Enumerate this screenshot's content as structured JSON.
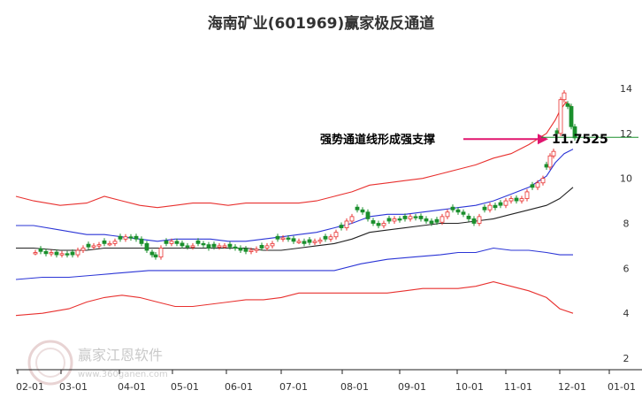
{
  "chart_data": {
    "type": "line",
    "title": "海南矿业(601969)赢家极反通道",
    "xlabel": "",
    "ylabel": "",
    "x_ticks": [
      "02-01",
      "03-01",
      "04-01",
      "05-01",
      "06-01",
      "07-01",
      "08-01",
      "09-01",
      "10-01",
      "11-01",
      "12-01",
      "01-01"
    ],
    "y_ticks": [
      2,
      4,
      6,
      8,
      10,
      12,
      14
    ],
    "ylim": [
      1.8,
      15.6
    ],
    "grid": false,
    "annotation": {
      "text": "强势通道线形成强支撑",
      "value": "11.7525",
      "y": 11.75
    },
    "series": [
      {
        "role": "upper",
        "color": "#e8312f",
        "points": [
          [
            0,
            9.2
          ],
          [
            20,
            9.0
          ],
          [
            50,
            8.8
          ],
          [
            80,
            8.9
          ],
          [
            100,
            9.2
          ],
          [
            120,
            9.0
          ],
          [
            140,
            8.8
          ],
          [
            160,
            8.7
          ],
          [
            180,
            8.8
          ],
          [
            200,
            8.9
          ],
          [
            220,
            8.9
          ],
          [
            240,
            8.8
          ],
          [
            260,
            8.9
          ],
          [
            280,
            8.9
          ],
          [
            300,
            8.9
          ],
          [
            320,
            8.9
          ],
          [
            340,
            9.0
          ],
          [
            360,
            9.2
          ],
          [
            380,
            9.4
          ],
          [
            400,
            9.7
          ],
          [
            420,
            9.8
          ],
          [
            440,
            9.9
          ],
          [
            460,
            10.0
          ],
          [
            480,
            10.2
          ],
          [
            500,
            10.4
          ],
          [
            520,
            10.6
          ],
          [
            540,
            10.9
          ],
          [
            560,
            11.1
          ],
          [
            580,
            11.5
          ],
          [
            600,
            12.0
          ],
          [
            610,
            12.6
          ],
          [
            615,
            13.0
          ],
          [
            622,
            13.4
          ],
          [
            630,
            13.1
          ]
        ]
      },
      {
        "role": "middle-upper",
        "color": "#2b35d6",
        "points": [
          [
            0,
            7.9
          ],
          [
            20,
            7.9
          ],
          [
            50,
            7.7
          ],
          [
            80,
            7.5
          ],
          [
            100,
            7.5
          ],
          [
            120,
            7.4
          ],
          [
            140,
            7.3
          ],
          [
            160,
            7.2
          ],
          [
            180,
            7.3
          ],
          [
            200,
            7.3
          ],
          [
            220,
            7.3
          ],
          [
            240,
            7.2
          ],
          [
            260,
            7.2
          ],
          [
            280,
            7.3
          ],
          [
            300,
            7.4
          ],
          [
            320,
            7.5
          ],
          [
            340,
            7.6
          ],
          [
            360,
            7.8
          ],
          [
            380,
            8.0
          ],
          [
            400,
            8.3
          ],
          [
            420,
            8.4
          ],
          [
            440,
            8.4
          ],
          [
            460,
            8.5
          ],
          [
            480,
            8.6
          ],
          [
            500,
            8.7
          ],
          [
            520,
            8.8
          ],
          [
            540,
            9.0
          ],
          [
            560,
            9.3
          ],
          [
            580,
            9.6
          ],
          [
            600,
            10.1
          ],
          [
            610,
            10.7
          ],
          [
            620,
            11.1
          ],
          [
            630,
            11.3
          ]
        ]
      },
      {
        "role": "middle",
        "color": "#222222",
        "points": [
          [
            0,
            6.9
          ],
          [
            20,
            6.9
          ],
          [
            50,
            6.8
          ],
          [
            80,
            6.8
          ],
          [
            100,
            6.9
          ],
          [
            120,
            6.9
          ],
          [
            140,
            6.9
          ],
          [
            160,
            6.9
          ],
          [
            180,
            6.9
          ],
          [
            200,
            6.9
          ],
          [
            220,
            6.9
          ],
          [
            240,
            6.9
          ],
          [
            260,
            6.9
          ],
          [
            280,
            6.8
          ],
          [
            300,
            6.8
          ],
          [
            320,
            6.9
          ],
          [
            340,
            7.0
          ],
          [
            360,
            7.1
          ],
          [
            380,
            7.3
          ],
          [
            400,
            7.6
          ],
          [
            420,
            7.7
          ],
          [
            440,
            7.8
          ],
          [
            460,
            7.9
          ],
          [
            480,
            8.0
          ],
          [
            500,
            8.0
          ],
          [
            520,
            8.1
          ],
          [
            540,
            8.2
          ],
          [
            560,
            8.4
          ],
          [
            580,
            8.6
          ],
          [
            600,
            8.8
          ],
          [
            615,
            9.1
          ],
          [
            630,
            9.6
          ]
        ]
      },
      {
        "role": "middle-lower",
        "color": "#2b35d6",
        "points": [
          [
            0,
            5.5
          ],
          [
            30,
            5.6
          ],
          [
            60,
            5.6
          ],
          [
            90,
            5.7
          ],
          [
            120,
            5.8
          ],
          [
            150,
            5.9
          ],
          [
            180,
            5.9
          ],
          [
            210,
            5.9
          ],
          [
            240,
            5.9
          ],
          [
            270,
            5.9
          ],
          [
            300,
            5.9
          ],
          [
            330,
            5.9
          ],
          [
            360,
            5.9
          ],
          [
            390,
            6.2
          ],
          [
            420,
            6.4
          ],
          [
            450,
            6.5
          ],
          [
            480,
            6.6
          ],
          [
            500,
            6.7
          ],
          [
            520,
            6.7
          ],
          [
            540,
            6.9
          ],
          [
            560,
            6.8
          ],
          [
            580,
            6.8
          ],
          [
            600,
            6.7
          ],
          [
            615,
            6.6
          ],
          [
            630,
            6.6
          ]
        ]
      },
      {
        "role": "lower",
        "color": "#e8312f",
        "points": [
          [
            0,
            3.9
          ],
          [
            30,
            4.0
          ],
          [
            60,
            4.2
          ],
          [
            80,
            4.5
          ],
          [
            100,
            4.7
          ],
          [
            120,
            4.8
          ],
          [
            140,
            4.7
          ],
          [
            160,
            4.5
          ],
          [
            180,
            4.3
          ],
          [
            200,
            4.3
          ],
          [
            220,
            4.4
          ],
          [
            240,
            4.5
          ],
          [
            260,
            4.6
          ],
          [
            280,
            4.6
          ],
          [
            300,
            4.7
          ],
          [
            320,
            4.9
          ],
          [
            340,
            4.9
          ],
          [
            360,
            4.9
          ],
          [
            380,
            4.9
          ],
          [
            400,
            4.9
          ],
          [
            420,
            4.9
          ],
          [
            440,
            5.0
          ],
          [
            460,
            5.1
          ],
          [
            480,
            5.1
          ],
          [
            500,
            5.1
          ],
          [
            520,
            5.2
          ],
          [
            540,
            5.4
          ],
          [
            560,
            5.2
          ],
          [
            580,
            5.0
          ],
          [
            600,
            4.7
          ],
          [
            615,
            4.2
          ],
          [
            630,
            4.0
          ]
        ]
      }
    ],
    "candles": [
      [
        22,
        6.7
      ],
      [
        28,
        6.75
      ],
      [
        34,
        6.65
      ],
      [
        40,
        6.7
      ],
      [
        46,
        6.6
      ],
      [
        52,
        6.65
      ],
      [
        58,
        6.6
      ],
      [
        64,
        6.6
      ],
      [
        70,
        6.8
      ],
      [
        76,
        6.9
      ],
      [
        82,
        6.95
      ],
      [
        88,
        7.0
      ],
      [
        94,
        7.05
      ],
      [
        100,
        7.1
      ],
      [
        106,
        7.1
      ],
      [
        112,
        7.2
      ],
      [
        118,
        7.3
      ],
      [
        124,
        7.4
      ],
      [
        130,
        7.35
      ],
      [
        136,
        7.3
      ],
      [
        142,
        7.1
      ],
      [
        148,
        6.8
      ],
      [
        154,
        6.6
      ],
      [
        158,
        6.5
      ],
      [
        164,
        6.9
      ],
      [
        170,
        7.1
      ],
      [
        176,
        7.2
      ],
      [
        182,
        7.1
      ],
      [
        188,
        7.0
      ],
      [
        194,
        6.95
      ],
      [
        200,
        7.0
      ],
      [
        206,
        7.1
      ],
      [
        212,
        7.05
      ],
      [
        218,
        6.9
      ],
      [
        224,
        6.95
      ],
      [
        230,
        7.0
      ],
      [
        236,
        7.0
      ],
      [
        242,
        6.95
      ],
      [
        248,
        6.9
      ],
      [
        254,
        6.8
      ],
      [
        260,
        6.75
      ],
      [
        266,
        6.8
      ],
      [
        272,
        6.85
      ],
      [
        278,
        6.9
      ],
      [
        284,
        7.0
      ],
      [
        290,
        7.1
      ],
      [
        296,
        7.3
      ],
      [
        302,
        7.35
      ],
      [
        308,
        7.3
      ],
      [
        314,
        7.2
      ],
      [
        320,
        7.2
      ],
      [
        326,
        7.1
      ],
      [
        332,
        7.15
      ],
      [
        338,
        7.2
      ],
      [
        344,
        7.25
      ],
      [
        350,
        7.3
      ],
      [
        356,
        7.4
      ],
      [
        362,
        7.6
      ],
      [
        368,
        7.8
      ],
      [
        374,
        8.1
      ],
      [
        380,
        8.3
      ],
      [
        386,
        8.6
      ],
      [
        392,
        8.5
      ],
      [
        398,
        8.2
      ],
      [
        404,
        8.0
      ],
      [
        410,
        7.9
      ],
      [
        416,
        8.0
      ],
      [
        422,
        8.1
      ],
      [
        428,
        8.2
      ],
      [
        434,
        8.15
      ],
      [
        440,
        8.2
      ],
      [
        446,
        8.3
      ],
      [
        452,
        8.25
      ],
      [
        458,
        8.2
      ],
      [
        464,
        8.1
      ],
      [
        470,
        8.0
      ],
      [
        476,
        8.05
      ],
      [
        482,
        8.3
      ],
      [
        488,
        8.5
      ],
      [
        494,
        8.6
      ],
      [
        500,
        8.5
      ],
      [
        506,
        8.4
      ],
      [
        512,
        8.2
      ],
      [
        518,
        8.0
      ],
      [
        524,
        8.3
      ],
      [
        530,
        8.6
      ],
      [
        536,
        8.8
      ],
      [
        542,
        8.7
      ],
      [
        548,
        8.8
      ],
      [
        554,
        9.0
      ],
      [
        560,
        9.1
      ],
      [
        566,
        9.0
      ],
      [
        572,
        9.1
      ],
      [
        578,
        9.4
      ],
      [
        584,
        9.6
      ],
      [
        590,
        9.8
      ],
      [
        596,
        10.0
      ],
      [
        600,
        10.5
      ],
      [
        604,
        11.0
      ],
      [
        608,
        11.2
      ],
      [
        612,
        12.0
      ],
      [
        616,
        13.5
      ],
      [
        620,
        13.8
      ],
      [
        624,
        13.2
      ],
      [
        628,
        12.3
      ],
      [
        632,
        11.8
      ]
    ]
  }
}
